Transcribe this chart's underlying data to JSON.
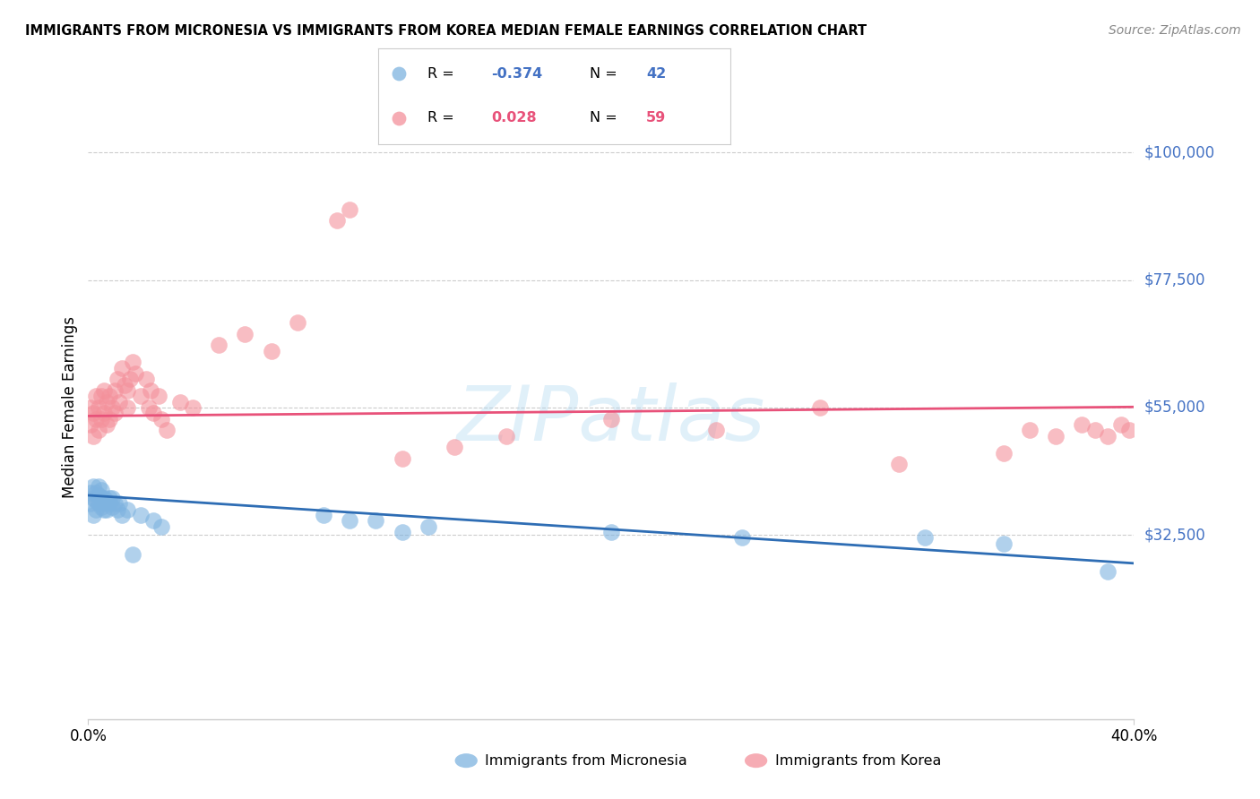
{
  "title": "IMMIGRANTS FROM MICRONESIA VS IMMIGRANTS FROM KOREA MEDIAN FEMALE EARNINGS CORRELATION CHART",
  "source": "Source: ZipAtlas.com",
  "ylabel": "Median Female Earnings",
  "xlim": [
    0.0,
    0.4
  ],
  "ylim": [
    0,
    110000
  ],
  "micronesia_color": "#7EB3E0",
  "korea_color": "#F4919B",
  "micronesia_line_color": "#2E6DB4",
  "korea_line_color": "#E8527A",
  "micronesia_R": -0.374,
  "micronesia_N": 42,
  "korea_R": 0.028,
  "korea_N": 59,
  "ytick_vals": [
    32500,
    55000,
    77500,
    100000
  ],
  "ytick_labels": [
    "$32,500",
    "$55,000",
    "$77,500",
    "$100,000"
  ],
  "ytick_color": "#4472C4",
  "grid_color": "#CCCCCC",
  "watermark": "ZIPatlas",
  "mic_intercept": 39500,
  "mic_slope": -30000,
  "kor_intercept": 53500,
  "kor_slope": 4000,
  "mic_x": [
    0.001,
    0.001,
    0.002,
    0.002,
    0.002,
    0.003,
    0.003,
    0.003,
    0.004,
    0.004,
    0.004,
    0.005,
    0.005,
    0.005,
    0.006,
    0.006,
    0.006,
    0.007,
    0.007,
    0.008,
    0.008,
    0.009,
    0.009,
    0.01,
    0.011,
    0.012,
    0.013,
    0.015,
    0.017,
    0.02,
    0.025,
    0.028,
    0.09,
    0.1,
    0.11,
    0.12,
    0.13,
    0.2,
    0.25,
    0.32,
    0.35,
    0.39
  ],
  "mic_y": [
    38000,
    40000,
    36000,
    39000,
    41000,
    37000,
    38500,
    40000,
    38000,
    39500,
    41000,
    37500,
    39000,
    40500,
    38000,
    37000,
    39000,
    38500,
    37000,
    39000,
    38000,
    37500,
    39000,
    38000,
    37000,
    38000,
    36000,
    37000,
    29000,
    36000,
    35000,
    34000,
    36000,
    35000,
    35000,
    33000,
    34000,
    33000,
    32000,
    32000,
    31000,
    26000
  ],
  "kor_x": [
    0.001,
    0.001,
    0.002,
    0.002,
    0.003,
    0.003,
    0.004,
    0.004,
    0.005,
    0.005,
    0.006,
    0.006,
    0.007,
    0.007,
    0.008,
    0.008,
    0.009,
    0.01,
    0.01,
    0.011,
    0.012,
    0.013,
    0.014,
    0.015,
    0.015,
    0.016,
    0.017,
    0.018,
    0.02,
    0.022,
    0.023,
    0.024,
    0.025,
    0.027,
    0.028,
    0.03,
    0.035,
    0.04,
    0.05,
    0.06,
    0.07,
    0.08,
    0.095,
    0.1,
    0.12,
    0.14,
    0.16,
    0.2,
    0.24,
    0.28,
    0.31,
    0.35,
    0.36,
    0.37,
    0.38,
    0.385,
    0.39,
    0.395,
    0.398
  ],
  "kor_y": [
    52000,
    55000,
    50000,
    54000,
    53000,
    57000,
    51000,
    55000,
    53000,
    57000,
    54000,
    58000,
    52000,
    56000,
    53000,
    57000,
    55000,
    54000,
    58000,
    60000,
    56000,
    62000,
    59000,
    55000,
    58000,
    60000,
    63000,
    61000,
    57000,
    60000,
    55000,
    58000,
    54000,
    57000,
    53000,
    51000,
    56000,
    55000,
    66000,
    68000,
    65000,
    70000,
    88000,
    90000,
    46000,
    48000,
    50000,
    53000,
    51000,
    55000,
    45000,
    47000,
    51000,
    50000,
    52000,
    51000,
    50000,
    52000,
    51000
  ]
}
